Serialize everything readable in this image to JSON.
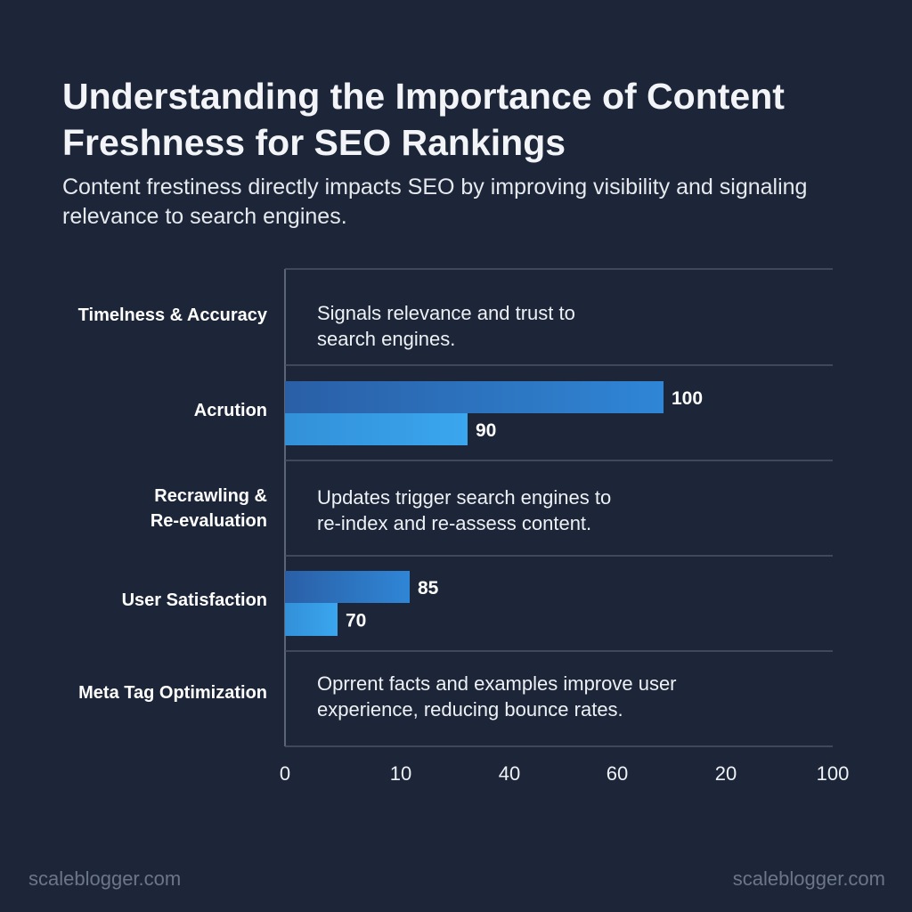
{
  "title": "Understanding the Importance of Content Freshness for SEO Rankings",
  "subtitle": "Content frestiness directly impacts SEO by improving visibility and signaling relevance to search engines.",
  "watermark_left": "scaleblogger.com",
  "watermark_right": "scaleblogger.com",
  "colors": {
    "background": "#1c2638",
    "bar_primary": "#2c73c8",
    "bar_secondary": "#3a9fe6",
    "grid": "#4a5566"
  },
  "chart_data": {
    "type": "bar",
    "orientation": "horizontal",
    "title": "Understanding the Importance of Content Freshness for SEO Rankings",
    "xlim": [
      0,
      100
    ],
    "x_tick_labels": [
      "0",
      "10",
      "40",
      "60",
      "20",
      "100"
    ],
    "rows": [
      {
        "label": "Timelness & Accuracy",
        "note": "Signals relevance and trust to\nsearch engines.",
        "values": []
      },
      {
        "label": "Acrution",
        "note": "",
        "values": [
          100,
          90
        ],
        "value_labels": [
          "100",
          "90"
        ]
      },
      {
        "label": "Recrawling &\nRe-evaluation",
        "note": "Updates trigger search engines to\nre-index and re-assess content.",
        "values": []
      },
      {
        "label": "User Satisfaction",
        "note": "",
        "values": [
          85,
          70
        ],
        "value_labels": [
          "85",
          "70"
        ]
      },
      {
        "label": "Meta Tag Optimization",
        "note": "Oprrent facts and examples improve user\nexperience, reducing bounce rates.",
        "values": []
      }
    ]
  }
}
